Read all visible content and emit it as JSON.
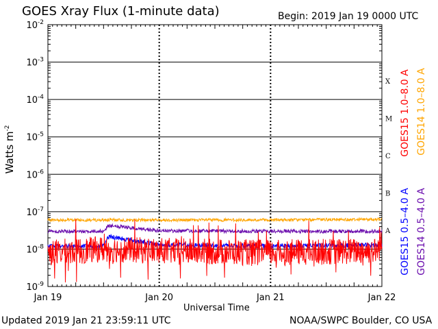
{
  "header": {
    "title": "GOES Xray Flux (1-minute data)",
    "begin": "Begin:  2019 Jan 19 0000 UTC"
  },
  "footer": {
    "updated": "Updated 2019 Jan 21 23:59:11 UTC",
    "credit": "NOAA/SWPC Boulder, CO USA"
  },
  "colors": {
    "goes15_long": "#ff0000",
    "goes14_long": "#ffa500",
    "goes15_short": "#0000ff",
    "goes14_short": "#6a0dad"
  },
  "chart_data": {
    "type": "line",
    "title": "GOES Xray Flux (1-minute data)",
    "xlabel": "Universal Time",
    "ylabel": "Watts m",
    "ylabel_superscript": "-2",
    "y_scale": "log",
    "ylim": [
      1e-09,
      0.01
    ],
    "y_ticks": [
      {
        "value": 1e-09,
        "base": "10",
        "exp": "-9"
      },
      {
        "value": 1e-08,
        "base": "10",
        "exp": "-8"
      },
      {
        "value": 1e-07,
        "base": "10",
        "exp": "-7"
      },
      {
        "value": 1e-06,
        "base": "10",
        "exp": "-6"
      },
      {
        "value": 1e-05,
        "base": "10",
        "exp": "-5"
      },
      {
        "value": 0.0001,
        "base": "10",
        "exp": "-4"
      },
      {
        "value": 0.001,
        "base": "10",
        "exp": "-3"
      },
      {
        "value": 0.01,
        "base": "10",
        "exp": "-2"
      }
    ],
    "x_ticks": [
      "Jan 19",
      "Jan 20",
      "Jan 21",
      "Jan 22"
    ],
    "xlim": [
      "2019-01-19T00:00Z",
      "2019-01-22T00:00Z"
    ],
    "flare_classes": [
      {
        "label": "A",
        "value": 1e-08
      },
      {
        "label": "B",
        "value": 1e-07
      },
      {
        "label": "C",
        "value": 1e-06
      },
      {
        "label": "M",
        "value": 1e-05
      },
      {
        "label": "X",
        "value": 0.0001
      }
    ],
    "grid": true,
    "legend_position": "right",
    "legend": [
      {
        "label": "GOES15 1.0–8.0 A",
        "color": "#ff0000"
      },
      {
        "label": "GOES14 1.0–8.0 A",
        "color": "#ffa500"
      },
      {
        "label": "GOES15 0.5–4.0 A",
        "color": "#0000ff"
      },
      {
        "label": "GOES14 0.5–4.0 A",
        "color": "#6a0dad"
      }
    ],
    "series": [
      {
        "name": "GOES14 1.0–8.0 A",
        "color": "#ffa500",
        "base": 6e-08,
        "noise": 0.04,
        "x": [
          "2019-01-19T00:00Z",
          "2019-01-20T00:00Z",
          "2019-01-21T00:00Z",
          "2019-01-22T00:00Z"
        ],
        "y": [
          6e-08,
          6e-08,
          6e-08,
          6.3e-08
        ]
      },
      {
        "name": "GOES14 0.5–4.0 A",
        "color": "#6a0dad",
        "base": 3e-08,
        "noise": 0.05,
        "x": [
          "2019-01-19T00:00Z",
          "2019-01-19T12:00Z",
          "2019-01-19T13:00Z",
          "2019-01-20T00:00Z",
          "2019-01-21T00:00Z",
          "2019-01-22T00:00Z"
        ],
        "y": [
          3e-08,
          3e-08,
          4.2e-08,
          3.1e-08,
          3e-08,
          3e-08
        ]
      },
      {
        "name": "GOES15 0.5–4.0 A",
        "color": "#0000ff",
        "base": 1.2e-08,
        "noise": 0.06,
        "x": [
          "2019-01-19T00:00Z",
          "2019-01-19T12:00Z",
          "2019-01-19T13:00Z",
          "2019-01-20T00:00Z",
          "2019-01-21T00:00Z",
          "2019-01-22T00:00Z"
        ],
        "y": [
          1.2e-08,
          1.2e-08,
          2.2e-08,
          1.3e-08,
          1.2e-08,
          1.3e-08
        ]
      },
      {
        "name": "GOES15 1.0–8.0 A",
        "color": "#ff0000",
        "base": 8e-09,
        "noise": 0.35,
        "x": [
          "2019-01-19T00:00Z",
          "2019-01-19T12:00Z",
          "2019-01-20T00:00Z",
          "2019-01-21T00:00Z",
          "2019-01-21T23:00Z",
          "2019-01-22T00:00Z"
        ],
        "y": [
          8e-09,
          1e-08,
          9e-09,
          8e-09,
          9e-09,
          1.5e-08
        ]
      }
    ]
  }
}
